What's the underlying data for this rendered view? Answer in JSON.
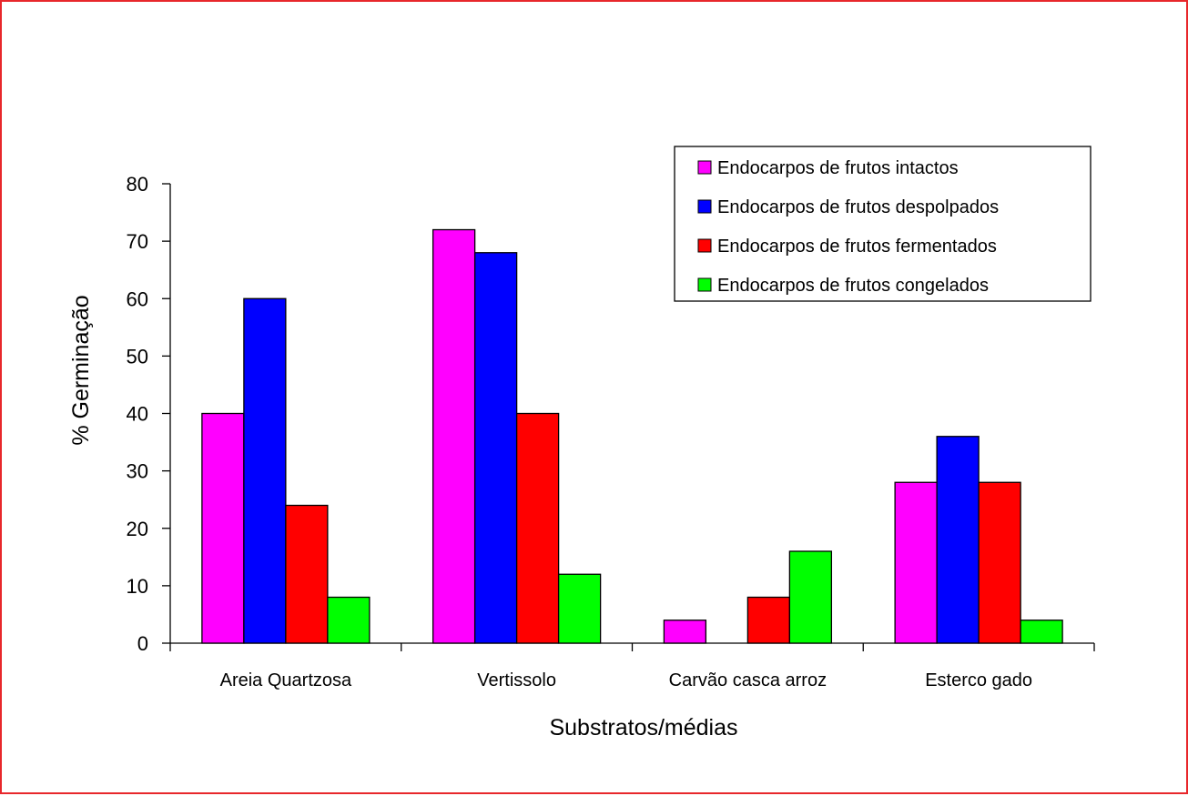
{
  "chart_data": {
    "type": "bar",
    "categories": [
      "Areia Quartzosa",
      "Vertissolo",
      "Carvão casca arroz",
      "Esterco gado"
    ],
    "series": [
      {
        "name": "Endocarpos de frutos intactos",
        "color": "#ff00ff",
        "values": [
          40,
          72,
          4,
          28
        ]
      },
      {
        "name": "Endocarpos de frutos despolpados",
        "color": "#0000ff",
        "values": [
          60,
          68,
          0,
          36
        ]
      },
      {
        "name": "Endocarpos de frutos fermentados",
        "color": "#ff0000",
        "values": [
          24,
          40,
          8,
          28
        ]
      },
      {
        "name": "Endocarpos de frutos congelados",
        "color": "#00ff00",
        "values": [
          8,
          12,
          16,
          4
        ]
      }
    ],
    "xlabel": "Substratos/médias",
    "ylabel": "% Germinação",
    "ylim": [
      0,
      80
    ],
    "yticks": [
      "0",
      "10",
      "20",
      "30",
      "40",
      "50",
      "60",
      "70",
      "80"
    ],
    "grid": false,
    "legend_position": "top-right"
  },
  "colors": {
    "frame_border": "#e8272b"
  }
}
